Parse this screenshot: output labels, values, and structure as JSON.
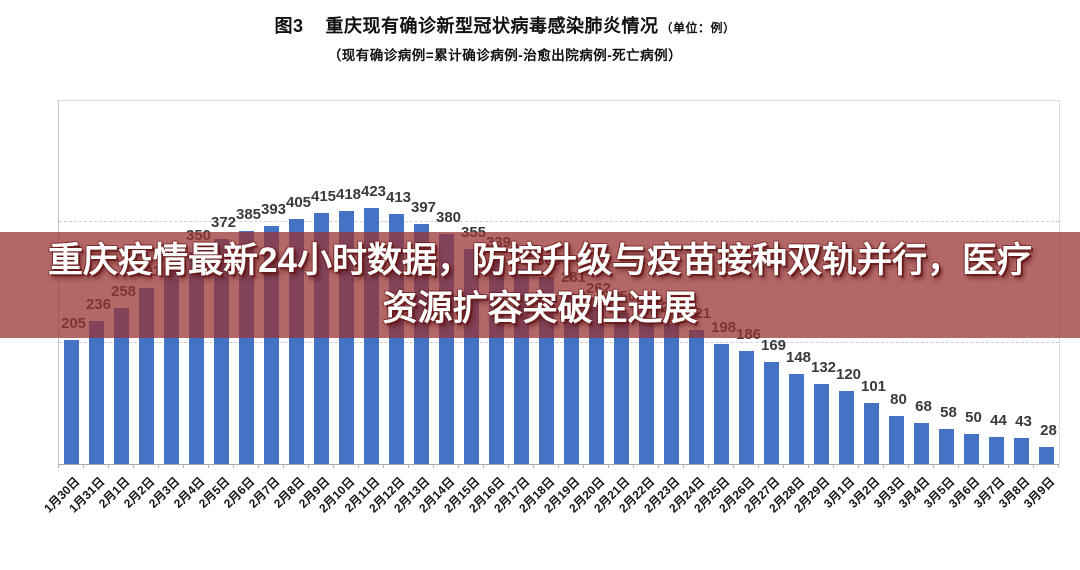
{
  "header": {
    "figure_label": "图3",
    "title": "重庆现有确诊新型冠状病毒感染肺炎情况",
    "unit_note": "（单位：例）",
    "subtitle": "（现有确诊病例=累计确诊病例-治愈出院病例-死亡病例）"
  },
  "overlay_banner": {
    "line1": "重庆疫情最新24小时数据，防控升级与疫苗接种双轨并行，医疗",
    "line2": "资源扩容突破性进展",
    "bg_color": "rgba(153,50,48,0.74)",
    "text_color": "#ffffff"
  },
  "chart_data": {
    "type": "bar",
    "title": "图3 重庆现有确诊新型冠状病毒感染肺炎情况（单位：例）",
    "subtitle": "现有确诊病例=累计确诊病例-治愈出院病例-死亡病例",
    "xlabel": "",
    "ylabel": "例",
    "categories": [
      "1月30日",
      "1月31日",
      "2月1日",
      "2月2日",
      "2月3日",
      "2月4日",
      "2月5日",
      "2月6日",
      "2月7日",
      "2月8日",
      "2月9日",
      "2月10日",
      "2月11日",
      "2月12日",
      "2月13日",
      "2月14日",
      "2月15日",
      "2月16日",
      "2月17日",
      "2月18日",
      "2月19日",
      "2月20日",
      "2月21日",
      "2月22日",
      "2月23日",
      "2月24日",
      "2月25日",
      "2月26日",
      "2月27日",
      "2月28日",
      "2月29日",
      "3月1日",
      "3月2日",
      "3月3日",
      "3月4日",
      "3月5日",
      "3月6日",
      "3月7日",
      "3月8日",
      "3月9日"
    ],
    "values": [
      205,
      236,
      258,
      291,
      326,
      350,
      372,
      385,
      393,
      405,
      415,
      418,
      423,
      413,
      397,
      380,
      355,
      339,
      322,
      309,
      281,
      262,
      250,
      237,
      232,
      221,
      198,
      186,
      169,
      148,
      132,
      120,
      101,
      80,
      68,
      58,
      50,
      44,
      43,
      28
    ],
    "ylim": [
      0,
      600
    ],
    "gridlines": [
      200,
      400
    ],
    "grid_style": "dashed",
    "legend": "none",
    "bar_color": "#4472c4",
    "value_label_color": "#3a3a3a",
    "axis_label_color": "#151515"
  }
}
